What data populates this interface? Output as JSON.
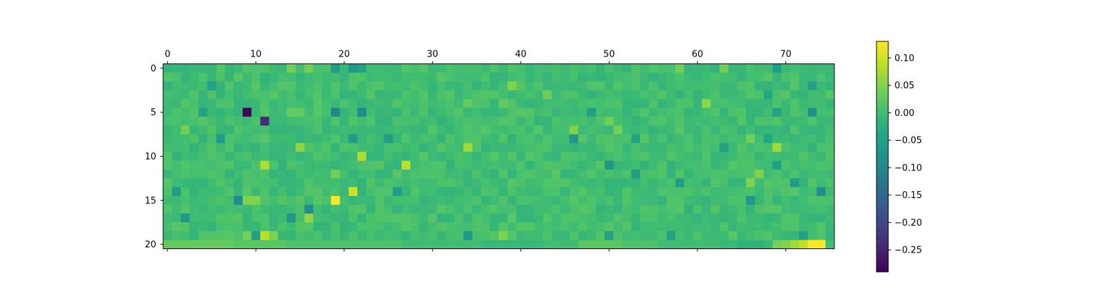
{
  "chart_data": {
    "type": "heatmap",
    "title": "",
    "xlabel": "",
    "ylabel": "",
    "rows": 21,
    "cols": 76,
    "x_ticks": [
      0,
      10,
      20,
      30,
      40,
      50,
      60,
      70
    ],
    "y_ticks": [
      0,
      5,
      10,
      15,
      20
    ],
    "colormap": "viridis",
    "colorbar": {
      "vmin": -0.29,
      "vmax": 0.13,
      "ticks": [
        0.1,
        0.05,
        0.0,
        -0.05,
        -0.1,
        -0.15,
        -0.2,
        -0.25
      ],
      "tick_labels": [
        "0.10",
        "0.05",
        "0.00",
        "−0.05",
        "−0.10",
        "−0.15",
        "−0.20",
        "−0.25"
      ]
    },
    "baseline_value": 0.0,
    "row_20_values": [
      0.03,
      0.03,
      0.03,
      0.03,
      0.03,
      0.03,
      0.03,
      0.03,
      0.02,
      0.02,
      0.02,
      0.02,
      0.02,
      0.02,
      0.01,
      0.01,
      0.01,
      0.01,
      0.01,
      0.01,
      0.01,
      0.01,
      0.01,
      0.01,
      0.01,
      0.01,
      0.01,
      0.0,
      0.0,
      0.0,
      0.0,
      0.0,
      0.0,
      0.0,
      0.0,
      0.0,
      -0.01,
      -0.01,
      -0.01,
      -0.01,
      -0.01,
      -0.01,
      -0.01,
      0.0,
      0.0,
      0.0,
      0.0,
      0.02,
      0.02,
      0.02,
      0.02,
      0.02,
      0.01,
      0.01,
      0.01,
      0.01,
      0.0,
      0.0,
      0.0,
      0.0,
      0.0,
      0.0,
      0.0,
      -0.01,
      -0.01,
      -0.02,
      -0.02,
      -0.02,
      -0.01,
      0.04,
      0.05,
      0.07,
      0.09,
      0.13,
      0.13,
      0.0
    ],
    "values_sparse": [
      {
        "row": 0,
        "col": 19,
        "value": -0.06
      },
      {
        "row": 0,
        "col": 21,
        "value": -0.07
      },
      {
        "row": 0,
        "col": 22,
        "value": -0.05
      },
      {
        "row": 0,
        "col": 14,
        "value": 0.04
      },
      {
        "row": 0,
        "col": 16,
        "value": 0.04
      },
      {
        "row": 0,
        "col": 58,
        "value": 0.04
      },
      {
        "row": 0,
        "col": 63,
        "value": 0.04
      },
      {
        "row": 0,
        "col": 69,
        "value": -0.06
      },
      {
        "row": 2,
        "col": 5,
        "value": -0.05
      },
      {
        "row": 2,
        "col": 39,
        "value": 0.05
      },
      {
        "row": 2,
        "col": 73,
        "value": -0.05
      },
      {
        "row": 3,
        "col": 43,
        "value": 0.04
      },
      {
        "row": 3,
        "col": 68,
        "value": -0.04
      },
      {
        "row": 4,
        "col": 61,
        "value": 0.06
      },
      {
        "row": 4,
        "col": 34,
        "value": 0.03
      },
      {
        "row": 4,
        "col": 38,
        "value": 0.03
      },
      {
        "row": 5,
        "col": 9,
        "value": -0.29
      },
      {
        "row": 5,
        "col": 19,
        "value": -0.1
      },
      {
        "row": 5,
        "col": 22,
        "value": -0.09
      },
      {
        "row": 5,
        "col": 4,
        "value": -0.05
      },
      {
        "row": 5,
        "col": 14,
        "value": 0.03
      },
      {
        "row": 5,
        "col": 15,
        "value": 0.03
      },
      {
        "row": 5,
        "col": 48,
        "value": -0.05
      },
      {
        "row": 5,
        "col": 69,
        "value": -0.05
      },
      {
        "row": 5,
        "col": 73,
        "value": -0.08
      },
      {
        "row": 6,
        "col": 11,
        "value": -0.24
      },
      {
        "row": 6,
        "col": 50,
        "value": 0.04
      },
      {
        "row": 7,
        "col": 2,
        "value": 0.04
      },
      {
        "row": 7,
        "col": 46,
        "value": 0.05
      },
      {
        "row": 7,
        "col": 51,
        "value": 0.04
      },
      {
        "row": 8,
        "col": 6,
        "value": -0.06
      },
      {
        "row": 8,
        "col": 21,
        "value": -0.06
      },
      {
        "row": 8,
        "col": 25,
        "value": -0.06
      },
      {
        "row": 8,
        "col": 46,
        "value": -0.07
      },
      {
        "row": 8,
        "col": 53,
        "value": -0.05
      },
      {
        "row": 8,
        "col": 66,
        "value": 0.04
      },
      {
        "row": 8,
        "col": 68,
        "value": -0.04
      },
      {
        "row": 9,
        "col": 15,
        "value": 0.06
      },
      {
        "row": 9,
        "col": 34,
        "value": 0.07
      },
      {
        "row": 9,
        "col": 63,
        "value": -0.05
      },
      {
        "row": 9,
        "col": 69,
        "value": 0.07
      },
      {
        "row": 10,
        "col": 22,
        "value": 0.08
      },
      {
        "row": 11,
        "col": 11,
        "value": 0.08
      },
      {
        "row": 11,
        "col": 27,
        "value": 0.09
      },
      {
        "row": 11,
        "col": 50,
        "value": -0.07
      },
      {
        "row": 11,
        "col": 69,
        "value": -0.05
      },
      {
        "row": 12,
        "col": 19,
        "value": 0.04
      },
      {
        "row": 12,
        "col": 53,
        "value": -0.06
      },
      {
        "row": 12,
        "col": 67,
        "value": 0.05
      },
      {
        "row": 13,
        "col": 58,
        "value": -0.06
      },
      {
        "row": 13,
        "col": 66,
        "value": 0.05
      },
      {
        "row": 13,
        "col": 71,
        "value": -0.06
      },
      {
        "row": 14,
        "col": 21,
        "value": 0.1
      },
      {
        "row": 14,
        "col": 1,
        "value": -0.06
      },
      {
        "row": 14,
        "col": 26,
        "value": -0.06
      },
      {
        "row": 14,
        "col": 74,
        "value": -0.09
      },
      {
        "row": 15,
        "col": 19,
        "value": 0.13
      },
      {
        "row": 15,
        "col": 8,
        "value": -0.09
      },
      {
        "row": 15,
        "col": 9,
        "value": 0.05
      },
      {
        "row": 15,
        "col": 10,
        "value": 0.05
      },
      {
        "row": 15,
        "col": 66,
        "value": -0.07
      },
      {
        "row": 16,
        "col": 16,
        "value": -0.09
      },
      {
        "row": 17,
        "col": 2,
        "value": -0.07
      },
      {
        "row": 17,
        "col": 14,
        "value": -0.07
      },
      {
        "row": 17,
        "col": 16,
        "value": 0.06
      },
      {
        "row": 19,
        "col": 9,
        "value": 0.04
      },
      {
        "row": 19,
        "col": 10,
        "value": -0.06
      },
      {
        "row": 19,
        "col": 11,
        "value": 0.09
      },
      {
        "row": 19,
        "col": 12,
        "value": 0.05
      },
      {
        "row": 19,
        "col": 34,
        "value": -0.07
      },
      {
        "row": 19,
        "col": 38,
        "value": 0.05
      },
      {
        "row": 19,
        "col": 50,
        "value": -0.05
      },
      {
        "row": 19,
        "col": 57,
        "value": -0.05
      },
      {
        "row": 19,
        "col": 72,
        "value": -0.05
      }
    ]
  }
}
